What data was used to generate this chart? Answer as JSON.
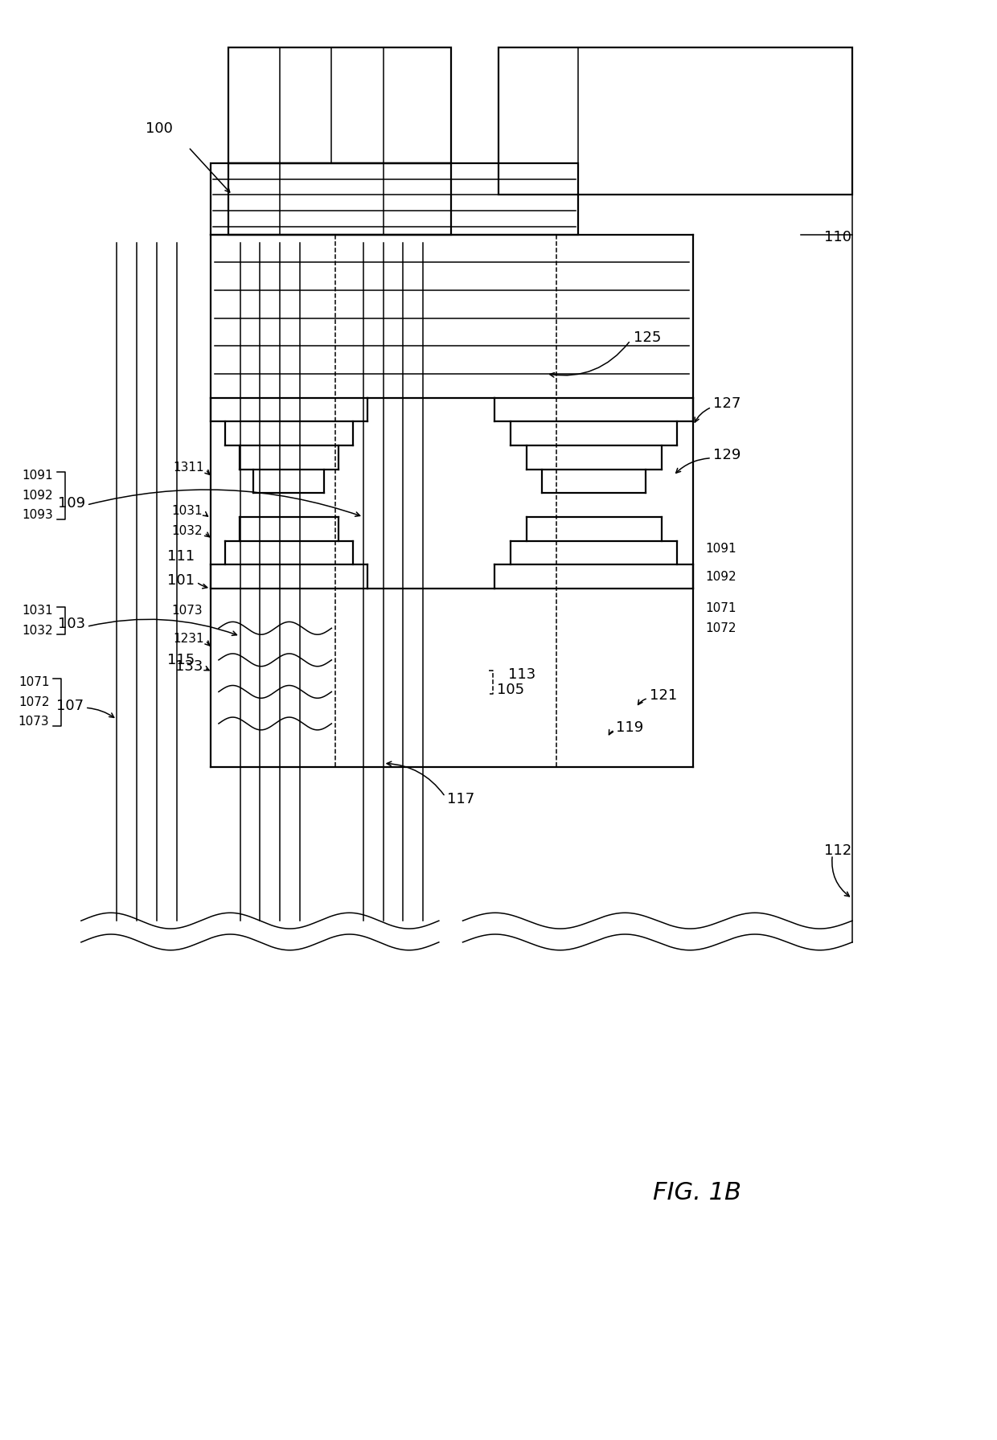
{
  "fig_width": 12.4,
  "fig_height": 17.91,
  "dpi": 100,
  "bg_color": "#ffffff",
  "labels": {
    "100": "100",
    "110": "110",
    "112": "112",
    "101": "101",
    "103": "103",
    "105": "105",
    "107": "107",
    "109": "109",
    "111": "111",
    "113": "113",
    "115": "115",
    "117": "117",
    "119": "119",
    "121": "121",
    "125": "125",
    "127": "127",
    "129": "129",
    "133": "133",
    "1031": "1031",
    "1032": "1032",
    "1071": "1071",
    "1072": "1072",
    "1073": "1073",
    "1091": "1091",
    "1092": "1092",
    "1093": "1093",
    "1231": "1231",
    "1311": "1311",
    "fig_label": "FIG. 1B"
  }
}
